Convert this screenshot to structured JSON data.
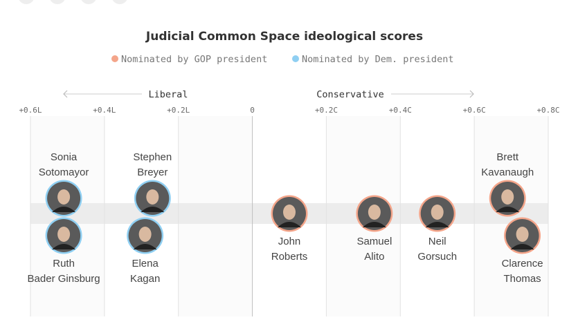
{
  "chart_data": {
    "type": "scatter",
    "title": "Judicial Common Space ideological scores",
    "legend": {
      "placement": "top",
      "entries": [
        {
          "label": "Nominated by GOP president",
          "color": "#f4a58a"
        },
        {
          "label": "Nominated by Dem. president",
          "color": "#8fcff2"
        }
      ]
    },
    "direction_labels": {
      "left": "Liberal",
      "right": "Conservative"
    },
    "x_ticks": [
      {
        "value": -0.6,
        "label": "+0.6L"
      },
      {
        "value": -0.4,
        "label": "+0.4L"
      },
      {
        "value": -0.2,
        "label": "+0.2L"
      },
      {
        "value": 0,
        "label": "0"
      },
      {
        "value": 0.2,
        "label": "+0.2C"
      },
      {
        "value": 0.4,
        "label": "+0.4C"
      },
      {
        "value": 0.6,
        "label": "+0.6C"
      },
      {
        "value": 0.8,
        "label": "+0.8C"
      }
    ],
    "xlim": [
      -0.6,
      0.8
    ],
    "grid": true,
    "justices": [
      {
        "key": "sotomayor",
        "name_lines": [
          "Sonia",
          "Sotomayor"
        ],
        "score": -0.51,
        "party": "Dem",
        "label_position": "above"
      },
      {
        "key": "ginsburg",
        "name_lines": [
          "Ruth",
          "Bader Ginsburg"
        ],
        "score": -0.51,
        "party": "Dem",
        "label_position": "below"
      },
      {
        "key": "breyer",
        "name_lines": [
          "Stephen",
          "Breyer"
        ],
        "score": -0.27,
        "party": "Dem",
        "label_position": "above"
      },
      {
        "key": "kagan",
        "name_lines": [
          "Elena",
          "Kagan"
        ],
        "score": -0.29,
        "party": "Dem",
        "label_position": "below"
      },
      {
        "key": "roberts",
        "name_lines": [
          "John",
          "Roberts"
        ],
        "score": 0.1,
        "party": "GOP",
        "label_position": "below"
      },
      {
        "key": "alito",
        "name_lines": [
          "Samuel",
          "Alito"
        ],
        "score": 0.33,
        "party": "GOP",
        "label_position": "below"
      },
      {
        "key": "gorsuch",
        "name_lines": [
          "Neil",
          "Gorsuch"
        ],
        "score": 0.5,
        "party": "GOP",
        "label_position": "below"
      },
      {
        "key": "kavanaugh",
        "name_lines": [
          "Brett",
          "Kavanaugh"
        ],
        "score": 0.69,
        "party": "GOP",
        "label_position": "above"
      },
      {
        "key": "thomas",
        "name_lines": [
          "Clarence",
          "Thomas"
        ],
        "score": 0.73,
        "party": "GOP",
        "label_position": "below"
      }
    ]
  }
}
